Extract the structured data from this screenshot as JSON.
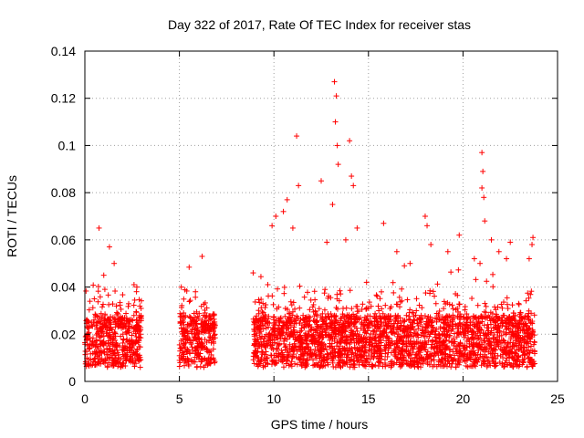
{
  "chart_data": {
    "type": "scatter",
    "title": "Day 322 of 2017, Rate Of TEC Index for receiver stas",
    "xlabel": "GPS time / hours",
    "ylabel": "ROTI / TECUs",
    "xlim": [
      0,
      25
    ],
    "ylim": [
      0,
      0.14
    ],
    "x_ticks": [
      0,
      5,
      10,
      15,
      20,
      25
    ],
    "x_tick_labels": [
      "0",
      "5",
      "10",
      "15",
      "20",
      "25"
    ],
    "y_ticks": [
      0,
      0.02,
      0.04,
      0.06,
      0.08,
      0.1,
      0.12,
      0.14
    ],
    "y_tick_labels": [
      "0",
      "0.02",
      "0.04",
      "0.06",
      "0.08",
      "0.1",
      "0.12",
      "0.14"
    ],
    "grid": true,
    "marker": "plus",
    "marker_color": "#ff0000",
    "series": [
      {
        "name": "ROTI",
        "description": "dense point cloud; observation gaps between ~3.0-5.0 h and ~6.9-8.9 h",
        "data_coverage_hours": [
          [
            0.0,
            3.0
          ],
          [
            5.0,
            6.9
          ],
          [
            8.9,
            23.8
          ]
        ],
        "points": [
          [
            0.75,
            0.065
          ],
          [
            1.3,
            0.057
          ],
          [
            1.55,
            0.05
          ],
          [
            0.5,
            0.035
          ],
          [
            1.0,
            0.045
          ],
          [
            2.6,
            0.041
          ],
          [
            2.75,
            0.04
          ],
          [
            6.2,
            0.053
          ],
          [
            5.1,
            0.04
          ],
          [
            5.85,
            0.038
          ],
          [
            8.9,
            0.046
          ],
          [
            9.9,
            0.066
          ],
          [
            10.1,
            0.07
          ],
          [
            10.5,
            0.072
          ],
          [
            10.7,
            0.077
          ],
          [
            11.2,
            0.104
          ],
          [
            11.3,
            0.083
          ],
          [
            11.0,
            0.065
          ],
          [
            12.5,
            0.085
          ],
          [
            12.8,
            0.059
          ],
          [
            13.2,
            0.127
          ],
          [
            13.3,
            0.121
          ],
          [
            13.25,
            0.11
          ],
          [
            13.35,
            0.1
          ],
          [
            13.4,
            0.092
          ],
          [
            13.1,
            0.075
          ],
          [
            14.0,
            0.102
          ],
          [
            14.1,
            0.087
          ],
          [
            14.2,
            0.083
          ],
          [
            14.4,
            0.065
          ],
          [
            13.8,
            0.06
          ],
          [
            14.9,
            0.042
          ],
          [
            15.8,
            0.067
          ],
          [
            16.5,
            0.055
          ],
          [
            16.9,
            0.049
          ],
          [
            17.2,
            0.05
          ],
          [
            18.0,
            0.07
          ],
          [
            18.1,
            0.066
          ],
          [
            18.3,
            0.058
          ],
          [
            19.2,
            0.055
          ],
          [
            19.8,
            0.062
          ],
          [
            20.6,
            0.052
          ],
          [
            21.0,
            0.097
          ],
          [
            21.05,
            0.089
          ],
          [
            21.0,
            0.082
          ],
          [
            21.1,
            0.078
          ],
          [
            21.15,
            0.068
          ],
          [
            20.9,
            0.05
          ],
          [
            21.5,
            0.06
          ],
          [
            21.9,
            0.055
          ],
          [
            22.5,
            0.059
          ],
          [
            22.3,
            0.052
          ],
          [
            23.7,
            0.061
          ],
          [
            23.65,
            0.058
          ],
          [
            23.5,
            0.052
          ]
        ]
      }
    ]
  }
}
